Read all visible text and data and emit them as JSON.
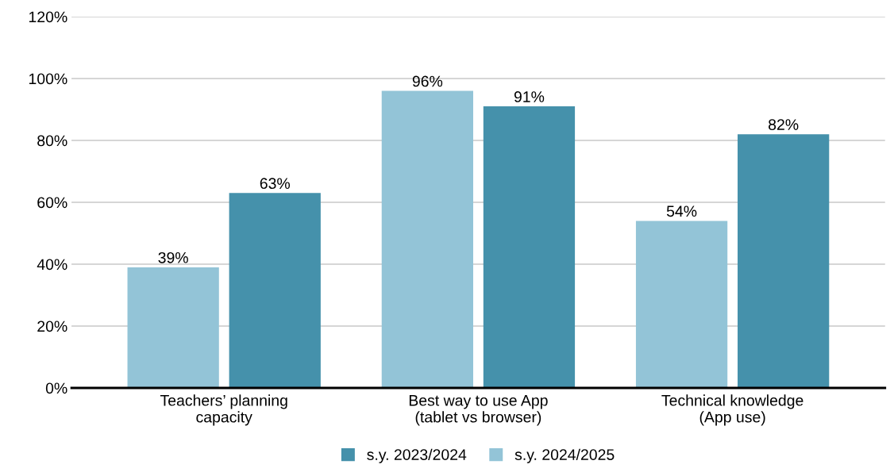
{
  "chart_data": {
    "type": "bar",
    "categories": [
      "Teachers’ planning\ncapacity",
      "Best way to use App\n(tablet vs browser)",
      "Technical knowledge\n(App use)"
    ],
    "series": [
      {
        "name": "s.y. 2024/2025",
        "color": "#93c4d7",
        "values": [
          39,
          96,
          54
        ],
        "value_labels": [
          "39%",
          "96%",
          "54%"
        ]
      },
      {
        "name": "s.y. 2023/2024",
        "color": "#4591ab",
        "values": [
          63,
          91,
          82
        ],
        "value_labels": [
          "63%",
          "91%",
          "82%"
        ]
      }
    ],
    "ylim": [
      0,
      120
    ],
    "yticks": [
      {
        "value": 0,
        "label": "0%"
      },
      {
        "value": 20,
        "label": "20%"
      },
      {
        "value": 40,
        "label": "40%"
      },
      {
        "value": 60,
        "label": "60%"
      },
      {
        "value": 80,
        "label": "80%"
      },
      {
        "value": 100,
        "label": "100%"
      },
      {
        "value": 120,
        "label": "120%"
      }
    ],
    "grid": "y",
    "legend": "bottom"
  }
}
